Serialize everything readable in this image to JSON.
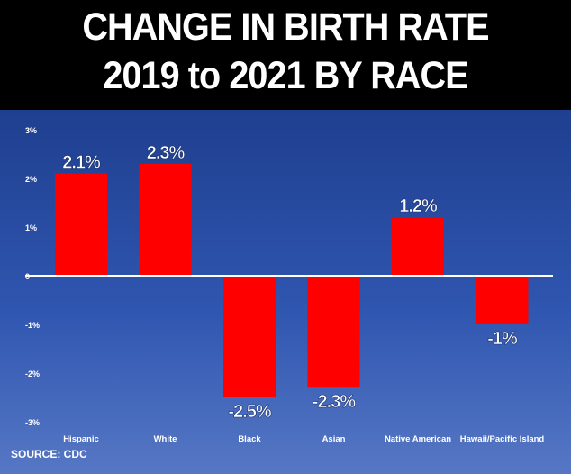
{
  "chart_data": {
    "type": "bar",
    "title": "CHANGE IN BIRTH RATE 2019 to 2021 BY RACE",
    "title_lines": [
      "CHANGE IN BIRTH RATE",
      "2019 to 2021 BY RACE"
    ],
    "categories": [
      "Hispanic",
      "White",
      "Black",
      "Asian",
      "Native American",
      "Hawaii/Pacific Island"
    ],
    "values": [
      2.1,
      2.3,
      -2.5,
      -2.3,
      1.2,
      -1
    ],
    "data_labels": [
      "2.1%",
      "2.3%",
      "-2.5%",
      "-2.3%",
      "1.2%",
      "-1%"
    ],
    "yticks": [
      3,
      2,
      1,
      0,
      -1,
      -2,
      -3
    ],
    "ytick_labels": [
      "3%",
      "2%",
      "1%",
      "0",
      "-1%",
      "-2%",
      "-3%"
    ],
    "ylim": [
      -3,
      3
    ],
    "xlabel": "",
    "ylabel": "",
    "grid": false,
    "bar_color": "#ff0000",
    "zero_line_color": "#ffffff",
    "source": "SOURCE: CDC"
  },
  "colors": {
    "header_bg": "#000000",
    "panel_top": "#1f3f8f",
    "panel_bottom": "#5677c4",
    "text": "#ffffff"
  }
}
